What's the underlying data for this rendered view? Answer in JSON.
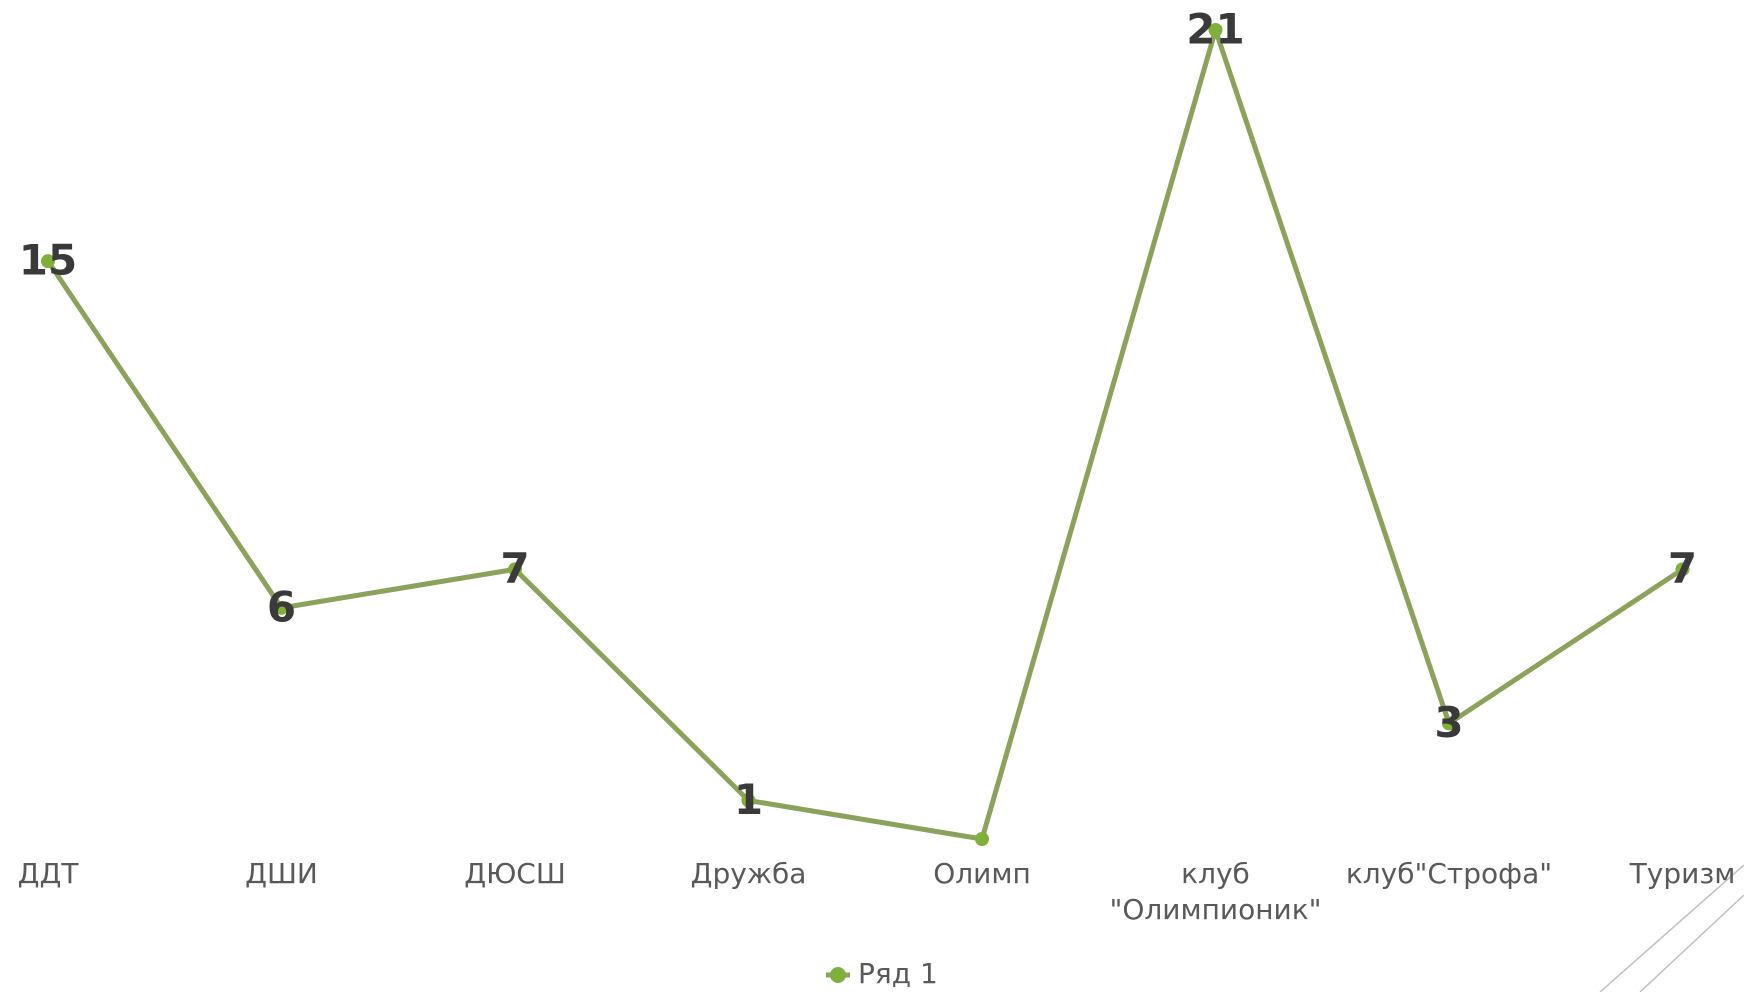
{
  "chart_data": {
    "type": "line",
    "title": "",
    "xlabel": "",
    "ylabel": "",
    "categories": [
      "ДДТ",
      "ДШИ",
      "ДЮСШ",
      "Дружба",
      "Олимп",
      "клуб \"Олимпионик\"",
      "клуб\"Строфа\"",
      "Туризм"
    ],
    "series": [
      {
        "name": "Ряд 1",
        "values": [
          15,
          6,
          7,
          1,
          0,
          21,
          3,
          7
        ],
        "labels": [
          "15",
          "6",
          "7",
          "1",
          "",
          "21",
          "3",
          "7"
        ],
        "color": "#8aa259",
        "marker_color": "#7eb03a"
      }
    ],
    "ylim": [
      0,
      21
    ],
    "grid": false,
    "legend": "bottom"
  }
}
